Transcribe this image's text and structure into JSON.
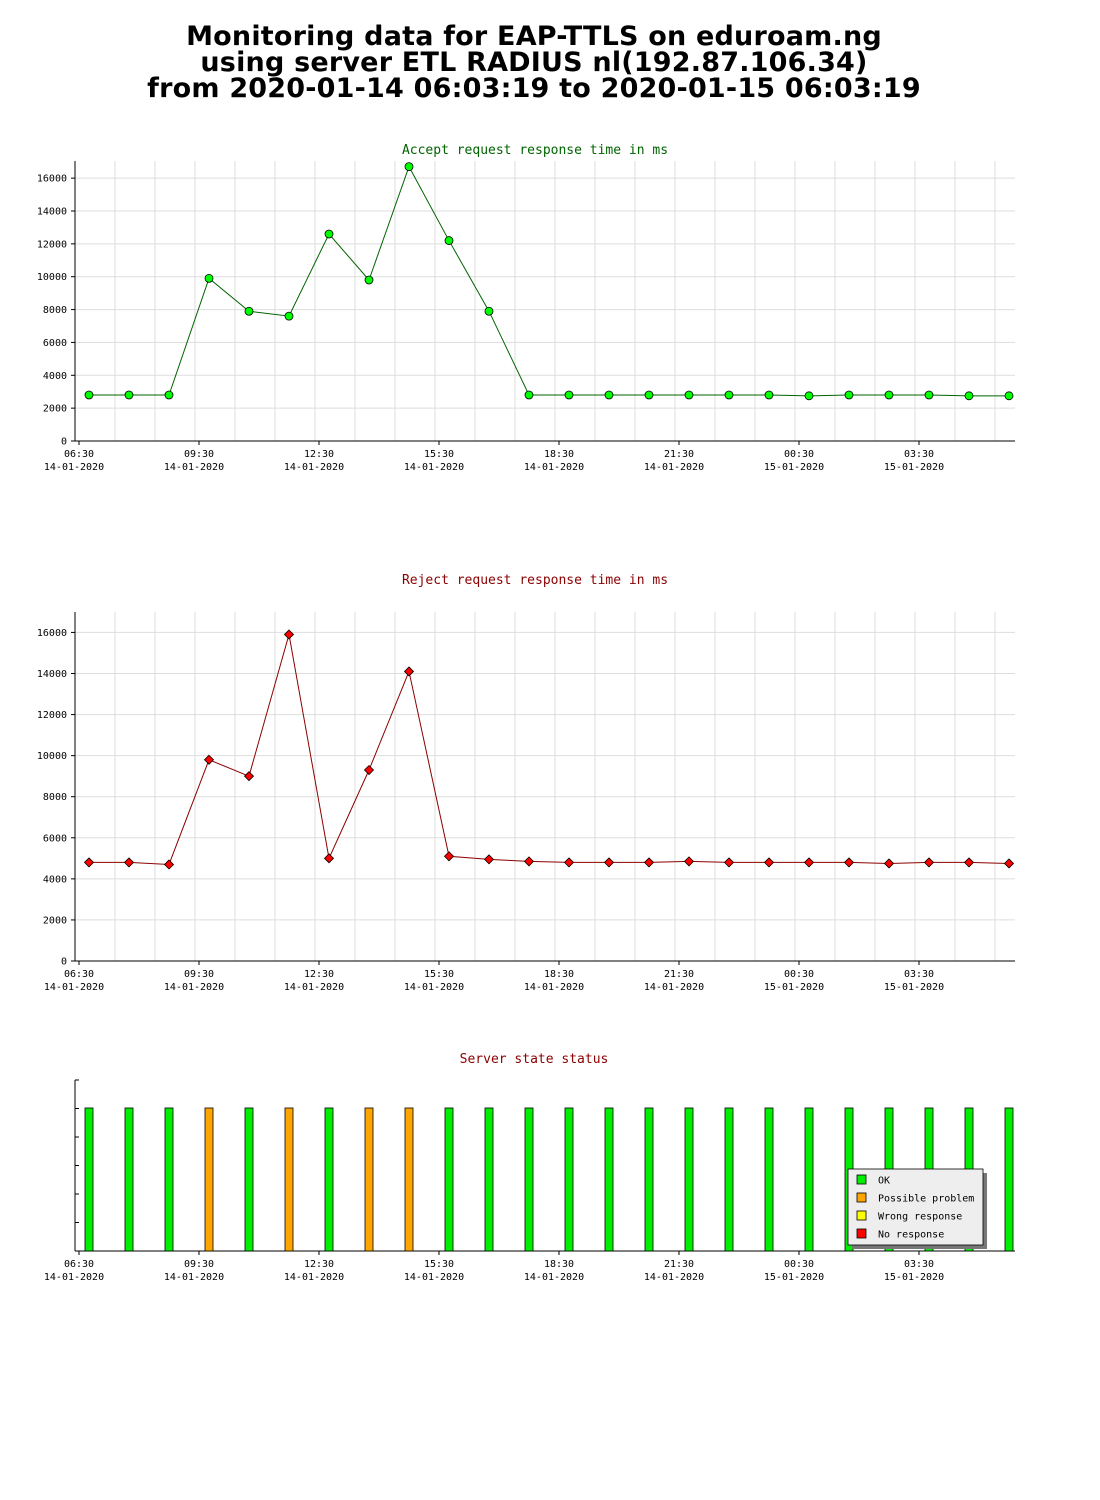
{
  "page": {
    "title_lines": [
      "Monitoring data for EAP-TTLS on eduroam.ng",
      "using server ETL RADIUS nl(192.87.106.34)",
      "from 2020-01-14 06:03:19 to 2020-01-15 06:03:19"
    ]
  },
  "colors": {
    "accept_title": "#006400",
    "reject_title": "#8b0000",
    "accept_line": "#006400",
    "accept_marker": "#00ff00",
    "reject_line": "#8b0000",
    "reject_marker": "#ff0000",
    "ok": "#00ee00",
    "possible_problem": "#ffa500",
    "wrong_response": "#ffff00",
    "no_response": "#ff0000"
  },
  "chart_data": [
    {
      "id": "accept",
      "type": "line",
      "title": "Accept request response time in ms",
      "x": [
        "06:03",
        "07:03",
        "08:03",
        "09:03",
        "10:03",
        "11:03",
        "12:03",
        "13:03",
        "14:03",
        "15:03",
        "16:03",
        "17:03",
        "18:03",
        "19:03",
        "20:03",
        "21:03",
        "22:03",
        "23:03",
        "00:03",
        "01:03",
        "02:03",
        "03:03",
        "04:03",
        "05:03"
      ],
      "y": [
        2800,
        2800,
        2800,
        9900,
        7900,
        7600,
        12600,
        9800,
        16700,
        12200,
        7900,
        2800,
        2800,
        2800,
        2800,
        2800,
        2800,
        2800,
        2750,
        2800,
        2800,
        2800,
        2750,
        2750
      ],
      "ylim": [
        0,
        16800
      ],
      "yticks": [
        0,
        2000,
        4000,
        6000,
        8000,
        10000,
        12000,
        14000,
        16000
      ],
      "xtick_labels": [
        {
          "time": "06:30",
          "date": "14-01-2020"
        },
        {
          "time": "09:30",
          "date": "14-01-2020"
        },
        {
          "time": "12:30",
          "date": "14-01-2020"
        },
        {
          "time": "15:30",
          "date": "14-01-2020"
        },
        {
          "time": "18:30",
          "date": "14-01-2020"
        },
        {
          "time": "21:30",
          "date": "14-01-2020"
        },
        {
          "time": "00:30",
          "date": "15-01-2020"
        },
        {
          "time": "03:30",
          "date": "15-01-2020"
        }
      ],
      "grid": true
    },
    {
      "id": "reject",
      "type": "line",
      "title": "Reject request response time in ms",
      "x": [
        "06:03",
        "07:03",
        "08:03",
        "09:03",
        "10:03",
        "11:03",
        "12:03",
        "13:03",
        "14:03",
        "15:03",
        "16:03",
        "17:03",
        "18:03",
        "19:03",
        "20:03",
        "21:03",
        "22:03",
        "23:03",
        "00:03",
        "01:03",
        "02:03",
        "03:03",
        "04:03",
        "05:03"
      ],
      "y": [
        4800,
        4800,
        4700,
        9800,
        9000,
        15900,
        5000,
        9300,
        14100,
        5100,
        4950,
        4850,
        4800,
        4800,
        4800,
        4850,
        4800,
        4800,
        4800,
        4800,
        4750,
        4800,
        4800,
        4750
      ],
      "ylim": [
        0,
        16800
      ],
      "yticks": [
        0,
        2000,
        4000,
        6000,
        8000,
        10000,
        12000,
        14000,
        16000
      ],
      "xtick_labels": [
        {
          "time": "06:30",
          "date": "14-01-2020"
        },
        {
          "time": "09:30",
          "date": "14-01-2020"
        },
        {
          "time": "12:30",
          "date": "14-01-2020"
        },
        {
          "time": "15:30",
          "date": "14-01-2020"
        },
        {
          "time": "18:30",
          "date": "14-01-2020"
        },
        {
          "time": "21:30",
          "date": "14-01-2020"
        },
        {
          "time": "00:30",
          "date": "15-01-2020"
        },
        {
          "time": "03:30",
          "date": "15-01-2020"
        }
      ],
      "grid": true
    },
    {
      "id": "status",
      "type": "bar",
      "title": "Server state status",
      "x": [
        "06:03",
        "07:03",
        "08:03",
        "09:03",
        "10:03",
        "11:03",
        "12:03",
        "13:03",
        "14:03",
        "15:03",
        "16:03",
        "17:03",
        "18:03",
        "19:03",
        "20:03",
        "21:03",
        "22:03",
        "23:03",
        "00:03",
        "01:03",
        "02:03",
        "03:03",
        "04:03",
        "05:03"
      ],
      "states": [
        "ok",
        "ok",
        "ok",
        "possible_problem",
        "ok",
        "possible_problem",
        "ok",
        "possible_problem",
        "possible_problem",
        "ok",
        "ok",
        "ok",
        "ok",
        "ok",
        "ok",
        "ok",
        "ok",
        "ok",
        "ok",
        "ok",
        "ok",
        "ok",
        "ok",
        "ok"
      ],
      "xtick_labels": [
        {
          "time": "06:30",
          "date": "14-01-2020"
        },
        {
          "time": "09:30",
          "date": "14-01-2020"
        },
        {
          "time": "12:30",
          "date": "14-01-2020"
        },
        {
          "time": "15:30",
          "date": "14-01-2020"
        },
        {
          "time": "18:30",
          "date": "14-01-2020"
        },
        {
          "time": "21:30",
          "date": "14-01-2020"
        },
        {
          "time": "00:30",
          "date": "15-01-2020"
        },
        {
          "time": "03:30",
          "date": "15-01-2020"
        }
      ],
      "legend": [
        {
          "key": "ok",
          "label": "OK"
        },
        {
          "key": "possible_problem",
          "label": "Possible problem"
        },
        {
          "key": "wrong_response",
          "label": "Wrong response"
        },
        {
          "key": "no_response",
          "label": "No response"
        }
      ],
      "legend_position": "bottom-right"
    }
  ]
}
